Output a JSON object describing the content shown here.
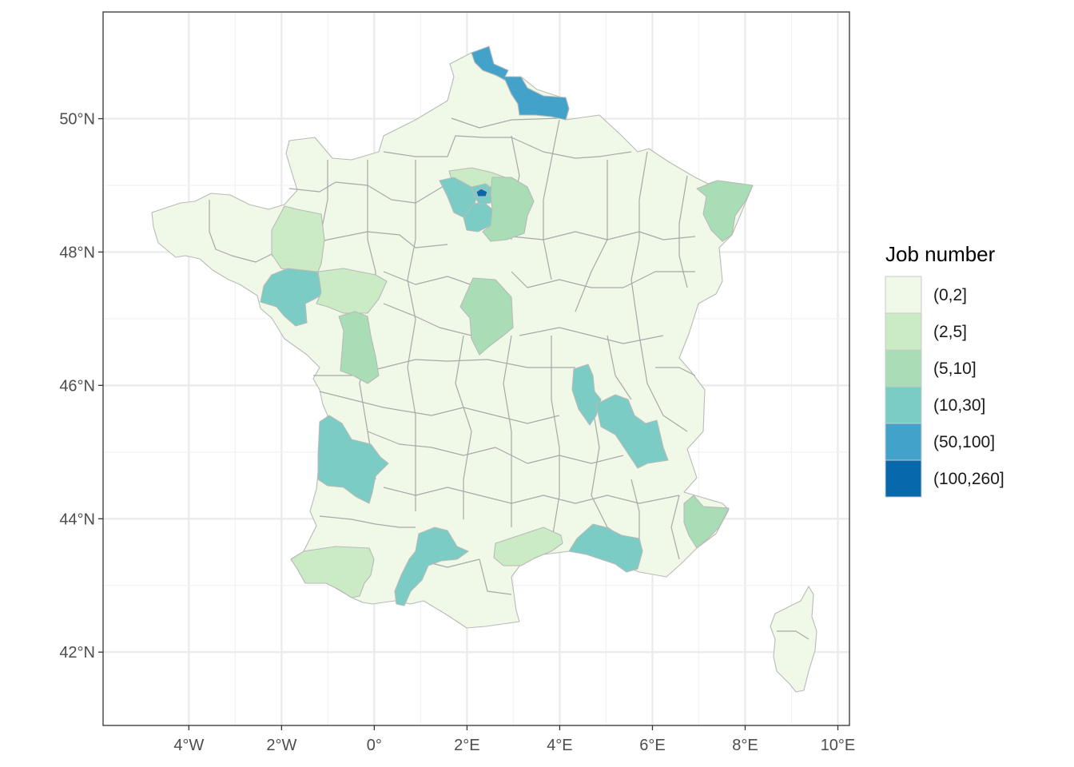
{
  "map": {
    "legend": {
      "title": "Job number",
      "items": [
        {
          "label": "(0,2]",
          "color": "#f0f9e8"
        },
        {
          "label": "(2,5]",
          "color": "#cbebc5"
        },
        {
          "label": "(5,10]",
          "color": "#a8ddb5"
        },
        {
          "label": "(10,30]",
          "color": "#7bccc4"
        },
        {
          "label": "(50,100]",
          "color": "#43a2ca"
        },
        {
          "label": "(100,260]",
          "color": "#0868ac"
        }
      ]
    },
    "x_axis": {
      "range": [
        -5.85,
        10.25
      ],
      "ticks": [
        {
          "value": -4,
          "label": "4°W"
        },
        {
          "value": -2,
          "label": "2°W"
        },
        {
          "value": 0,
          "label": "0°"
        },
        {
          "value": 2,
          "label": "2°E"
        },
        {
          "value": 4,
          "label": "4°E"
        },
        {
          "value": 6,
          "label": "6°E"
        },
        {
          "value": 8,
          "label": "8°E"
        },
        {
          "value": 10,
          "label": "10°E"
        }
      ]
    },
    "y_axis": {
      "range": [
        40.9,
        51.6
      ],
      "ticks": [
        {
          "value": 42,
          "label": "42°N"
        },
        {
          "value": 44,
          "label": "44°N"
        },
        {
          "value": 46,
          "label": "46°N"
        },
        {
          "value": 48,
          "label": "48°N"
        },
        {
          "value": 50,
          "label": "50°N"
        }
      ]
    },
    "grid": true,
    "theme": "bw",
    "legend_position": "right",
    "regions": [
      {
        "name": "Nord",
        "class": "(50,100]"
      },
      {
        "name": "Paris",
        "class": "(100,260]"
      },
      {
        "name": "Hauts-de-Seine",
        "class": "(10,30]"
      },
      {
        "name": "Yvelines",
        "class": "(10,30]"
      },
      {
        "name": "Essonne",
        "class": "(10,30]"
      },
      {
        "name": "Seine-et-Marne",
        "class": "(5,10]"
      },
      {
        "name": "Val-d'Oise",
        "class": "(2,5]"
      },
      {
        "name": "Bas-Rhin",
        "class": "(5,10]"
      },
      {
        "name": "Ille-et-Vilaine",
        "class": "(2,5]"
      },
      {
        "name": "Loire-Atlantique",
        "class": "(10,30]"
      },
      {
        "name": "Maine-et-Loire",
        "class": "(2,5]"
      },
      {
        "name": "Vienne",
        "class": "(5,10]"
      },
      {
        "name": "Loiret / Cher",
        "class": "(5,10]"
      },
      {
        "name": "Rhône",
        "class": "(10,30]"
      },
      {
        "name": "Isère",
        "class": "(10,30]"
      },
      {
        "name": "Gironde",
        "class": "(10,30]"
      },
      {
        "name": "Haute-Garonne / Tarn",
        "class": "(10,30]"
      },
      {
        "name": "Hérault",
        "class": "(2,5]"
      },
      {
        "name": "Bouches-du-Rhône",
        "class": "(10,30]"
      },
      {
        "name": "Alpes-Maritimes",
        "class": "(5,10]"
      },
      {
        "name": "Pyrénées-Atlantiques",
        "class": "(2,5]"
      }
    ]
  }
}
